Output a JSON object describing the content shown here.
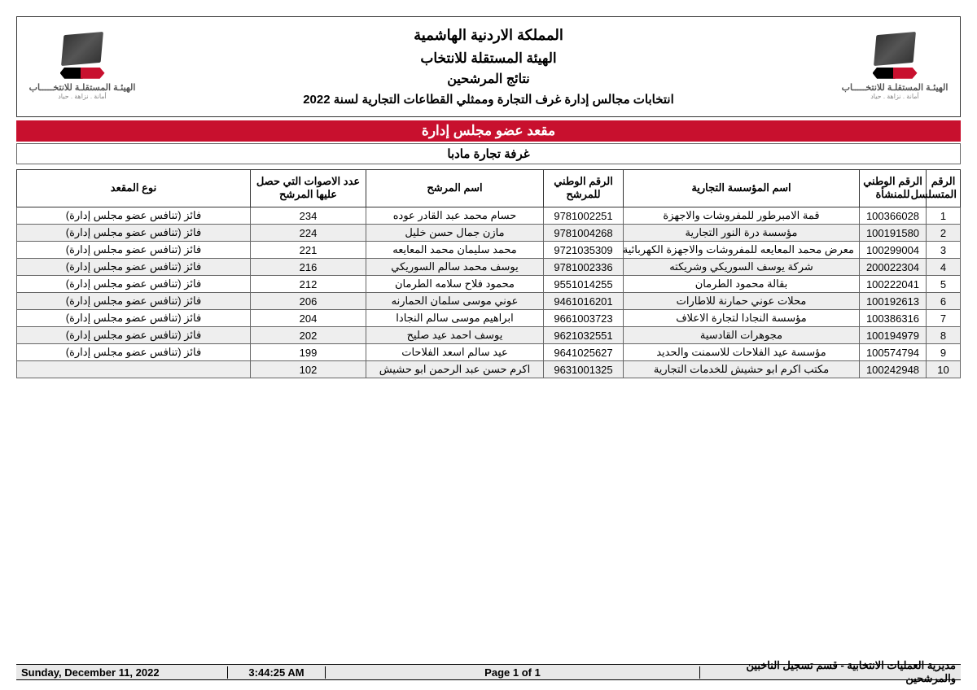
{
  "header": {
    "line1": "المملكة الاردنية الهاشمية",
    "line2": "الهيئة المستقلة للانتخاب",
    "line3": "نتائج المرشحين",
    "line4": "انتخابات مجالس إدارة غرف التجارة وممثلي القطاعات التجارية لسنة 2022",
    "logo_main": "الهيئـة المستقلـة للانتخـــــاب",
    "logo_sub": "أمانة . نزاهة . حياد"
  },
  "section_title": "مقعد عضو مجلس إدارة",
  "chamber": "غرفة تجارة مادبا",
  "columns": {
    "seq": "الرقم المتسلسل",
    "entity_id": "الرقم الوطني للمنشأة",
    "entity_name": "اسم المؤسسة التجارية",
    "candidate_id": "الرقم الوطني للمرشح",
    "candidate_name": "اسم المرشح",
    "votes": "عدد الاصوات التي حصل عليها المرشح",
    "seat_type": "نوع المقعد"
  },
  "rows": [
    {
      "seq": "1",
      "entity_id": "100366028",
      "entity_name": "قمة الامبرطور للمفروشات والاجهزة",
      "candidate_id": "9781002251",
      "candidate_name": "حسام محمد عبد القادر عوده",
      "votes": "234",
      "seat": "فائز (تنافس عضو مجلس إدارة)"
    },
    {
      "seq": "2",
      "entity_id": "100191580",
      "entity_name": "مؤسسة درة النور التجارية",
      "candidate_id": "9781004268",
      "candidate_name": "مازن جمال حسن خليل",
      "votes": "224",
      "seat": "فائز (تنافس عضو مجلس إدارة)"
    },
    {
      "seq": "3",
      "entity_id": "100299004",
      "entity_name": "معرض محمد المعايعه للمفروشات والاجهزة الكهربائية",
      "candidate_id": "9721035309",
      "candidate_name": "محمد سليمان محمد المعايعه",
      "votes": "221",
      "seat": "فائز (تنافس عضو مجلس إدارة)"
    },
    {
      "seq": "4",
      "entity_id": "200022304",
      "entity_name": "شركة يوسف السوريكي وشريكته",
      "candidate_id": "9781002336",
      "candidate_name": "يوسف محمد سالم السوريكي",
      "votes": "216",
      "seat": "فائز (تنافس عضو مجلس إدارة)"
    },
    {
      "seq": "5",
      "entity_id": "100222041",
      "entity_name": "بقالة محمود الطرمان",
      "candidate_id": "9551014255",
      "candidate_name": "محمود فلاح سلامه الطرمان",
      "votes": "212",
      "seat": "فائز (تنافس عضو مجلس إدارة)"
    },
    {
      "seq": "6",
      "entity_id": "100192613",
      "entity_name": "محلات عوني حمارنة للاطارات",
      "candidate_id": "9461016201",
      "candidate_name": "عوني موسى سلمان الحمارنه",
      "votes": "206",
      "seat": "فائز (تنافس عضو مجلس إدارة)"
    },
    {
      "seq": "7",
      "entity_id": "100386316",
      "entity_name": "مؤسسة النجادا لتجارة الاعلاف",
      "candidate_id": "9661003723",
      "candidate_name": "ابراهيم موسى سالم النجادا",
      "votes": "204",
      "seat": "فائز (تنافس عضو مجلس إدارة)"
    },
    {
      "seq": "8",
      "entity_id": "100194979",
      "entity_name": "مجوهرات القادسية",
      "candidate_id": "9621032551",
      "candidate_name": "يوسف احمد عيد صليح",
      "votes": "202",
      "seat": "فائز (تنافس عضو مجلس إدارة)"
    },
    {
      "seq": "9",
      "entity_id": "100574794",
      "entity_name": "مؤسسة عيد الفلاحات للاسمنت والحديد",
      "candidate_id": "9641025627",
      "candidate_name": "عيد سالم اسعد الفلاحات",
      "votes": "199",
      "seat": "فائز (تنافس عضو مجلس إدارة)"
    },
    {
      "seq": "10",
      "entity_id": "100242948",
      "entity_name": "مكتب اكرم ابو حشيش للخدمات التجارية",
      "candidate_id": "9631001325",
      "candidate_name": "اكرم حسن عبد الرحمن ابو حشيش",
      "votes": "102",
      "seat": ""
    }
  ],
  "footer": {
    "date": "Sunday, December 11, 2022",
    "time": "3:44:25 AM",
    "page": "Page 1 of 1",
    "dept": "مديرية العمليات الانتخابية - قسم تسجيل الناخبين والمرشحين"
  },
  "colors": {
    "red": "#c8102e",
    "alt_row": "#eeeeee",
    "footer_bg": "#e8e8e8"
  }
}
